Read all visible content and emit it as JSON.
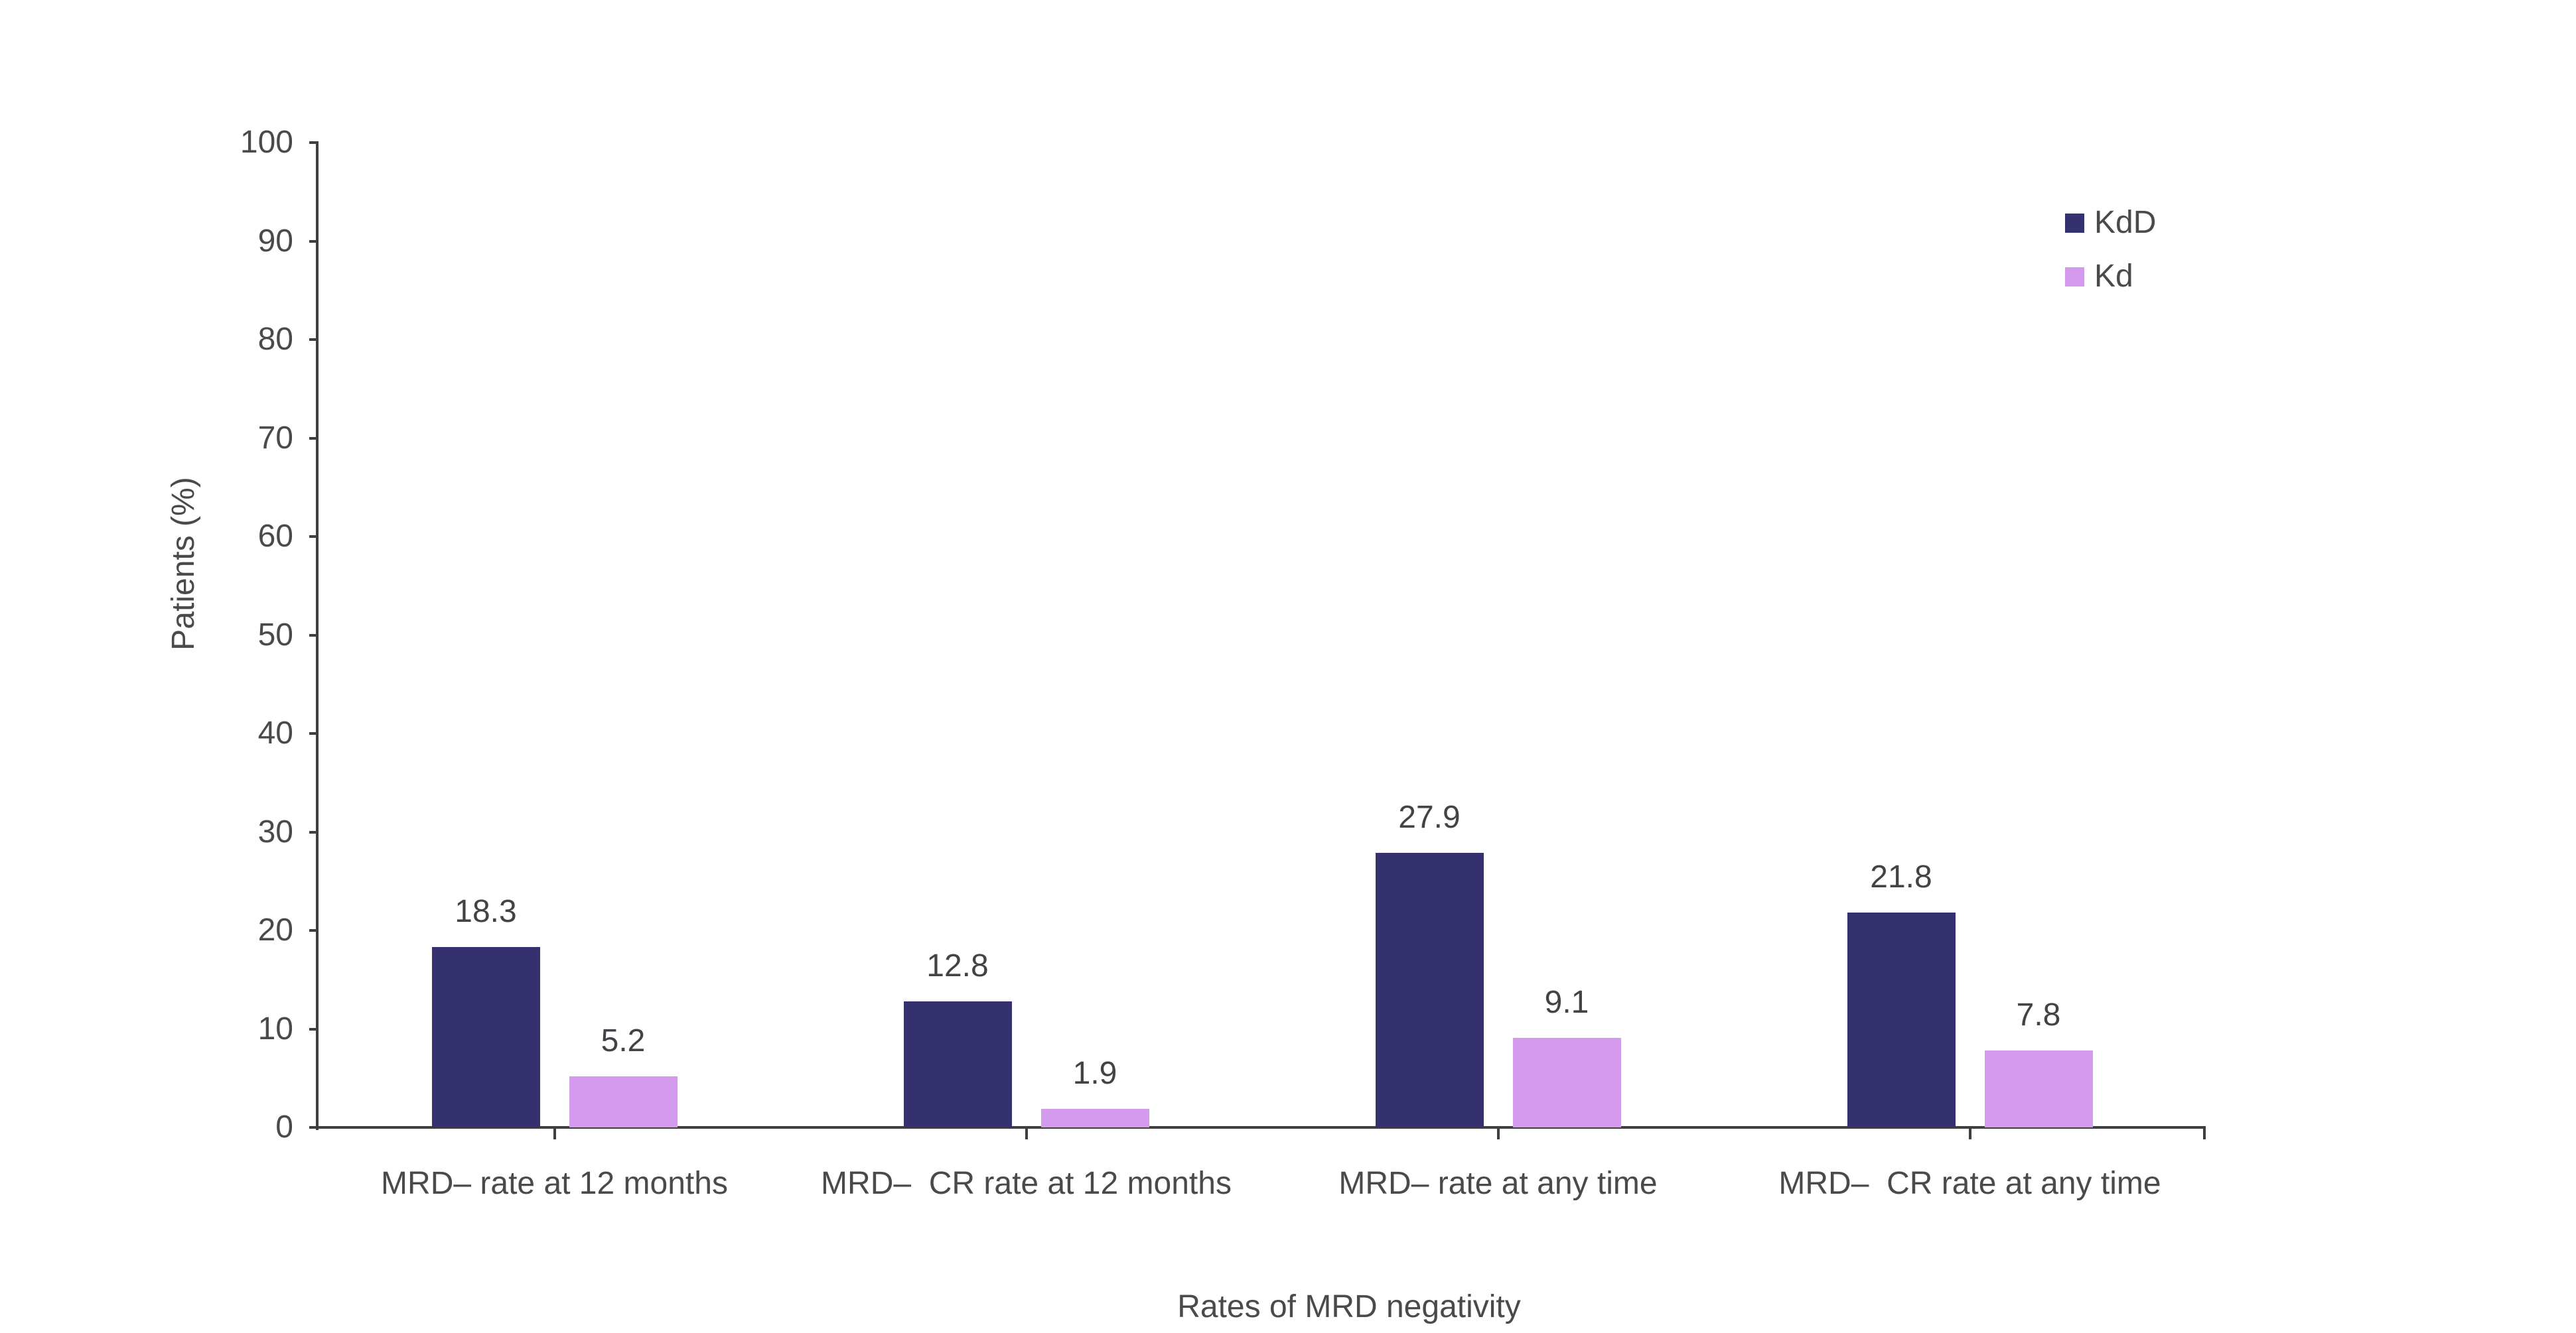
{
  "chart_data": {
    "type": "bar",
    "title": "",
    "categories": [
      "MRD– rate at 12 months",
      "MRD–  CR rate at 12 months",
      "MRD– rate at any time",
      "MRD–  CR rate at any time"
    ],
    "series": [
      {
        "name": "KdD",
        "color": "#35306e",
        "values": [
          18.3,
          12.8,
          27.9,
          21.8
        ]
      },
      {
        "name": "Kd",
        "color": "#d49aee",
        "values": [
          5.2,
          1.9,
          9.1,
          7.8
        ]
      }
    ],
    "xlabel": "Rates of MRD negativity",
    "ylabel": "Patients (%)",
    "ylim": [
      0,
      100
    ],
    "ytick_step": 10,
    "ytick_labels": [
      "0",
      "10",
      "20",
      "30",
      "40",
      "50",
      "60",
      "70",
      "80",
      "90",
      "100"
    ],
    "grid": false,
    "value_labels_shown": true,
    "legend_position": "top-right"
  },
  "colors": {
    "kdd_bar": "#35306e",
    "kd_bar": "#d49aee",
    "text": "#4a4a4a",
    "axis": "#3f3f3f",
    "background": "#ffffff"
  }
}
